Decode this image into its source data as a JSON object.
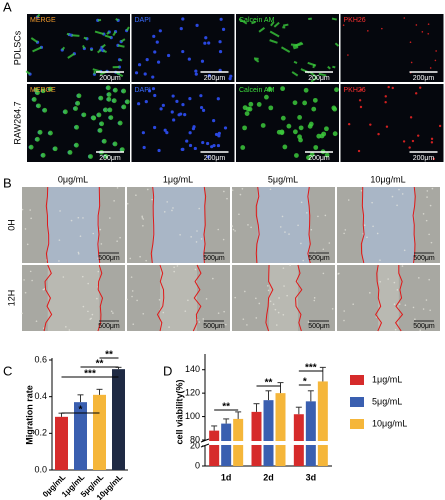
{
  "panel_a": {
    "label": "A",
    "rows": [
      "PDLSCs",
      "RAW264.7"
    ],
    "channels": [
      "MERGE",
      "DAPI",
      "Calcein AM",
      "PKH26"
    ],
    "scale_bar": "200μm"
  },
  "panel_b": {
    "label": "B",
    "columns": [
      "0μg/mL",
      "1μg/mL",
      "5μg/mL",
      "10μg/mL"
    ],
    "rows": [
      "0H",
      "12H"
    ],
    "scale_bar": "500μm"
  },
  "chart_data": [
    {
      "type": "bar",
      "panel": "C",
      "ylabel": "Migration rate",
      "categories": [
        "0μg/mL",
        "1μg/mL",
        "5μg/mL",
        "10μg/mL"
      ],
      "values": [
        0.29,
        0.37,
        0.41,
        0.55
      ],
      "errors": [
        0.02,
        0.04,
        0.03,
        0.01
      ],
      "colors": [
        "#d62b2b",
        "#3a5fb0",
        "#f5b63a",
        "#1f2a44"
      ],
      "ylim": [
        0,
        0.6
      ],
      "yticks": [
        {
          "value": 0,
          "label": "0.0"
        },
        0.2,
        0.4,
        0.6
      ],
      "annotations": [
        "*",
        "***",
        "**",
        "**"
      ]
    },
    {
      "type": "grouped-bar",
      "panel": "D",
      "ylabel": "cell viability(%)",
      "categories": [
        "1d",
        "2d",
        "3d"
      ],
      "series": [
        {
          "name": "1μg/mL",
          "color": "#d62b2b",
          "values": [
            88,
            104,
            102
          ],
          "errors": [
            4,
            7,
            6
          ]
        },
        {
          "name": "5μg/mL",
          "color": "#3a5fb0",
          "values": [
            94,
            114,
            113
          ],
          "errors": [
            4,
            8,
            9
          ]
        },
        {
          "name": "10μg/mL",
          "color": "#f5b63a",
          "values": [
            98,
            120,
            130
          ],
          "errors": [
            6,
            9,
            12
          ]
        }
      ],
      "ylim": [
        0,
        150
      ],
      "ybreak": [
        20,
        80
      ],
      "yticks": [
        0,
        20,
        80,
        100,
        120,
        140
      ],
      "annotations": [
        "**",
        "**",
        "*",
        "***"
      ]
    }
  ]
}
